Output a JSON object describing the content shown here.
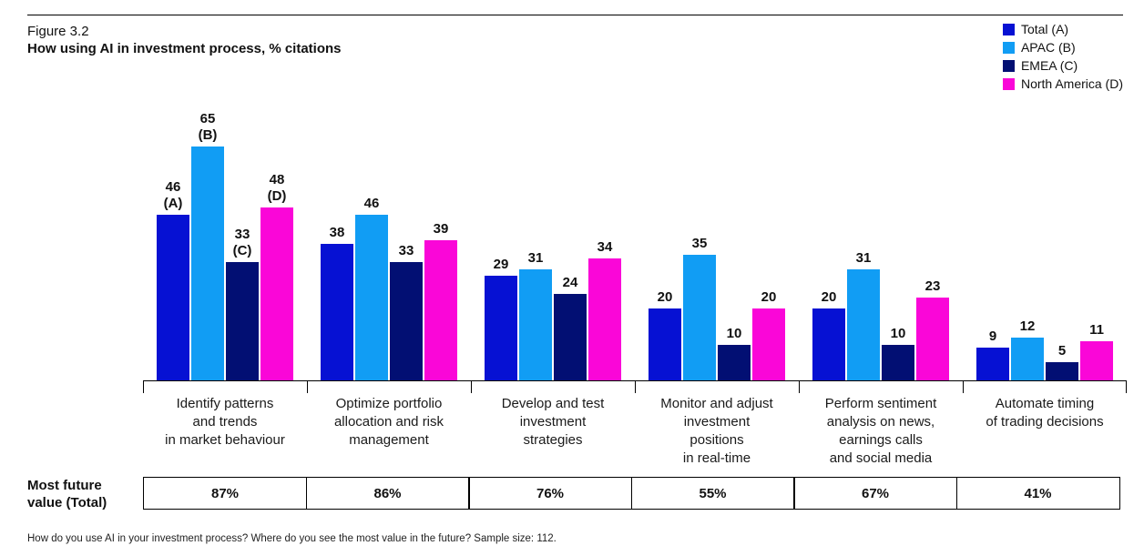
{
  "figure": {
    "label": "Figure 3.2",
    "title": "How using AI in investment process, % citations",
    "footnote": "How do you use AI in your investment process? Where do you see the most value in the future? Sample size: 112."
  },
  "legend": [
    {
      "label": "Total (A)",
      "color": "#0611d3"
    },
    {
      "label": "APAC (B)",
      "color": "#119df4"
    },
    {
      "label": "EMEA (C)",
      "color": "#020f73"
    },
    {
      "label": "North America (D)",
      "color": "#fa06d8"
    }
  ],
  "chart_data": {
    "type": "bar",
    "title": "How using AI in investment process, % citations",
    "xlabel": "",
    "ylabel": "% citations",
    "ylim": [
      0,
      65
    ],
    "grid": false,
    "legend_position": "top-right",
    "categories": [
      "Identify patterns\nand trends\nin market behaviour",
      "Optimize portfolio\nallocation and risk\nmanagement",
      "Develop and test\ninvestment\nstrategies",
      "Monitor and adjust\ninvestment\npositions\nin real-time",
      "Perform sentiment\nanalysis on news,\nearnings calls\nand social media",
      "Automate timing\nof trading decisions"
    ],
    "series": [
      {
        "name": "Total (A)",
        "letter": "A",
        "color": "#0611d3",
        "values": [
          46,
          38,
          29,
          20,
          20,
          9
        ],
        "display_labels": [
          "46\n(A)",
          "38",
          "29",
          "20",
          "20",
          "9"
        ]
      },
      {
        "name": "APAC (B)",
        "letter": "B",
        "color": "#119df4",
        "values": [
          65,
          46,
          31,
          35,
          31,
          12
        ],
        "display_labels": [
          "65\n(B)",
          "46",
          "31",
          "35",
          "31",
          "12"
        ]
      },
      {
        "name": "EMEA (C)",
        "letter": "C",
        "color": "#020f73",
        "values": [
          33,
          33,
          24,
          10,
          10,
          5
        ],
        "display_labels": [
          "33\n(C)",
          "33",
          "24",
          "10",
          "10",
          "5"
        ]
      },
      {
        "name": "North America (D)",
        "letter": "D",
        "color": "#fa06d8",
        "values": [
          48,
          39,
          34,
          20,
          23,
          11
        ],
        "display_labels": [
          "48\n(D)",
          "39",
          "34",
          "20",
          "23",
          "11"
        ]
      }
    ]
  },
  "table": {
    "row_label": "Most future\nvalue (Total)",
    "values": [
      "87%",
      "86%",
      "76%",
      "55%",
      "67%",
      "41%"
    ]
  }
}
